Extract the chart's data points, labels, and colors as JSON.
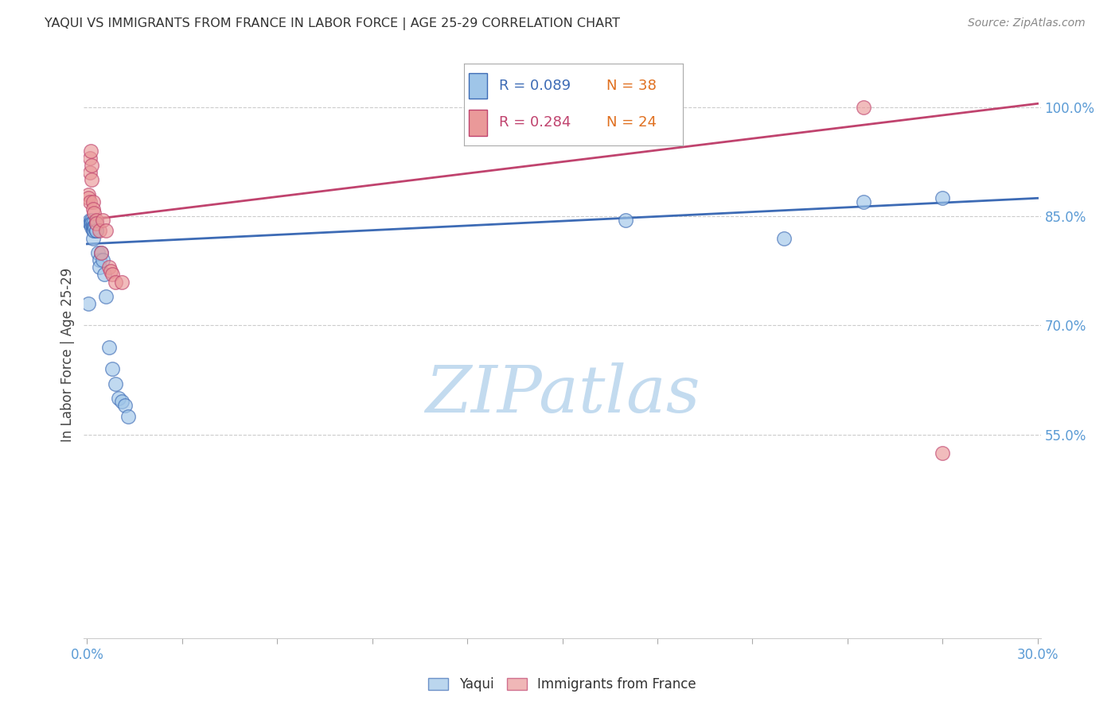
{
  "title": "YAQUI VS IMMIGRANTS FROM FRANCE IN LABOR FORCE | AGE 25-29 CORRELATION CHART",
  "source": "Source: ZipAtlas.com",
  "ylabel": "In Labor Force | Age 25-29",
  "xlim": [
    -0.001,
    0.301
  ],
  "ylim": [
    0.27,
    1.05
  ],
  "xticks": [
    0.0,
    0.03,
    0.06,
    0.09,
    0.12,
    0.15,
    0.18,
    0.21,
    0.24,
    0.27,
    0.3
  ],
  "xtick_labels": [
    "0.0%",
    "",
    "",
    "",
    "",
    "",
    "",
    "",
    "",
    "",
    "30.0%"
  ],
  "ytick_vals": [
    0.55,
    0.7,
    0.85,
    1.0
  ],
  "ytick_labels": [
    "55.0%",
    "70.0%",
    "85.0%",
    "100.0%"
  ],
  "blue_color": "#9FC5E8",
  "pink_color": "#EA9999",
  "blue_line_color": "#3D6BB5",
  "pink_line_color": "#C0436E",
  "axis_label_color": "#5B9BD5",
  "grid_color": "#CCCCCC",
  "watermark_color": "#BDD7EE",
  "blue_x": [
    0.0003,
    0.0008,
    0.001,
    0.001,
    0.0013,
    0.0013,
    0.0015,
    0.0015,
    0.0018,
    0.002,
    0.002,
    0.002,
    0.002,
    0.0022,
    0.0022,
    0.0025,
    0.003,
    0.003,
    0.003,
    0.003,
    0.0035,
    0.004,
    0.004,
    0.0045,
    0.005,
    0.0055,
    0.006,
    0.007,
    0.008,
    0.009,
    0.01,
    0.011,
    0.012,
    0.013,
    0.17,
    0.22,
    0.245,
    0.27
  ],
  "blue_y": [
    0.73,
    0.84,
    0.845,
    0.84,
    0.845,
    0.84,
    0.84,
    0.835,
    0.84,
    0.835,
    0.835,
    0.83,
    0.82,
    0.835,
    0.83,
    0.835,
    0.84,
    0.84,
    0.83,
    0.83,
    0.8,
    0.79,
    0.78,
    0.8,
    0.79,
    0.77,
    0.74,
    0.67,
    0.64,
    0.62,
    0.6,
    0.595,
    0.59,
    0.575,
    0.845,
    0.82,
    0.87,
    0.875
  ],
  "pink_x": [
    0.0003,
    0.0005,
    0.0008,
    0.001,
    0.001,
    0.0012,
    0.0013,
    0.0015,
    0.002,
    0.002,
    0.0022,
    0.003,
    0.003,
    0.004,
    0.0045,
    0.005,
    0.006,
    0.007,
    0.0075,
    0.008,
    0.009,
    0.011,
    0.245,
    0.27
  ],
  "pink_y": [
    0.88,
    0.875,
    0.87,
    0.93,
    0.91,
    0.94,
    0.92,
    0.9,
    0.87,
    0.86,
    0.855,
    0.845,
    0.84,
    0.83,
    0.8,
    0.845,
    0.83,
    0.78,
    0.775,
    0.77,
    0.76,
    0.76,
    1.0,
    0.525
  ],
  "blue_trend_x": [
    0.0,
    0.3
  ],
  "blue_trend_y": [
    0.812,
    0.875
  ],
  "pink_trend_x": [
    0.0,
    0.3
  ],
  "pink_trend_y": [
    0.845,
    1.005
  ]
}
